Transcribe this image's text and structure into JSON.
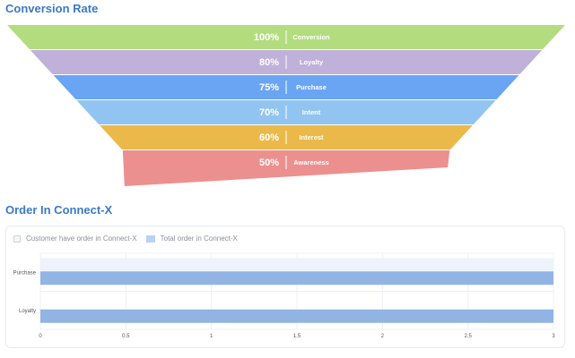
{
  "sections": {
    "funnel_title": "Conversion Rate",
    "bar_title": "Order In Connect-X"
  },
  "chart_data": [
    {
      "type": "funnel",
      "title": "Conversion Rate",
      "stages": [
        {
          "label": "Conversion",
          "value": "100%",
          "color": "#b3dc7f"
        },
        {
          "label": "Loyalty",
          "value": "80%",
          "color": "#bfb1da"
        },
        {
          "label": "Purchase",
          "value": "75%",
          "color": "#6aa5f4"
        },
        {
          "label": "Intent",
          "value": "70%",
          "color": "#92c4f1"
        },
        {
          "label": "Interest",
          "value": "60%",
          "color": "#ebb94a"
        },
        {
          "label": "Awareness",
          "value": "50%",
          "color": "#ec908f"
        }
      ]
    },
    {
      "type": "bar",
      "orientation": "horizontal",
      "title": "Order In Connect-X",
      "categories": [
        "Purchase",
        "Loyalty"
      ],
      "series": [
        {
          "name": "Customer have order in Connect-X",
          "values": [
            3,
            0
          ],
          "color": "#eef3fb"
        },
        {
          "name": "Total order in Connect-X",
          "values": [
            3,
            3
          ],
          "color": "#92b4e4"
        }
      ],
      "xlim": [
        0,
        3
      ],
      "xticks": [
        "0",
        "0.5",
        "1",
        "1.5",
        "2",
        "2.5",
        "3"
      ],
      "grid": true,
      "legend": "top-left"
    }
  ]
}
